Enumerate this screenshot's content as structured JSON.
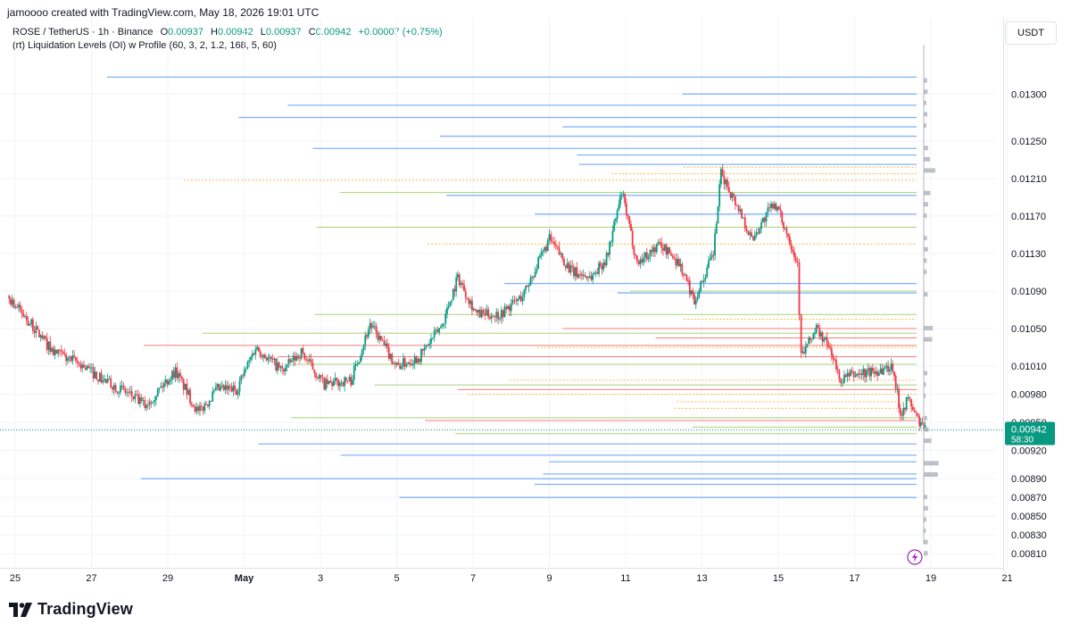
{
  "header": {
    "created_by": "jamoooo created with TradingView.com, May 18, 2026 19:01 UTC"
  },
  "symbol_bar": {
    "symbol": "ROSE / TetherUS · 1h · Binance",
    "open_label": "O",
    "open": "0.00937",
    "high_label": "H",
    "high": "0.00942",
    "low_label": "L",
    "low": "0.00937",
    "close_label": "C",
    "close": "0.00942",
    "change": "+0.00007 (+0.75%)"
  },
  "indicator": {
    "label": "(rt) Liquidation Levels (OI) w Profile (60, 3, 2, 1.2, 168, 5, 60)"
  },
  "currency": "USDT",
  "price_badge": {
    "price": "0.00942",
    "countdown": "58:30"
  },
  "brand": {
    "name": "TradingView"
  },
  "colors": {
    "up": "#089981",
    "down": "#f23645",
    "long_liq": "#5b9cf6",
    "short_liq": "#f7a600",
    "mid_liq": "#8bc34a",
    "liq_red": "#ef5350",
    "profile": "#b2b5be",
    "grid": "#f0f3fa",
    "accent": "#9c27b0"
  },
  "icons": {
    "alert": "lightning-icon",
    "logo": "tradingview-logo-icon"
  },
  "chart_data": {
    "type": "candlestick",
    "title": "ROSE / TetherUS · 1h · Binance",
    "ylim": [
      0.00795,
      0.01345
    ],
    "y_ticks": [
      "0.01300",
      "0.01250",
      "0.01210",
      "0.01170",
      "0.01130",
      "0.01090",
      "0.01050",
      "0.01010",
      "0.00980",
      "0.00950",
      "0.00920",
      "0.00890",
      "0.00870",
      "0.00850",
      "0.00830",
      "0.00810"
    ],
    "x_ticks": [
      "25",
      "27",
      "29",
      "May",
      "3",
      "5",
      "7",
      "9",
      "11",
      "13",
      "15",
      "17",
      "19",
      "21"
    ],
    "x_tick_days": [
      25,
      27,
      29,
      31,
      33,
      35,
      37,
      39,
      41,
      43,
      45,
      47,
      49,
      51
    ],
    "price_path": [
      [
        24.8,
        0.01085
      ],
      [
        25.3,
        0.0106
      ],
      [
        26.0,
        0.01025
      ],
      [
        26.8,
        0.0101
      ],
      [
        27.3,
        0.00995
      ],
      [
        27.8,
        0.00985
      ],
      [
        28.4,
        0.00968
      ],
      [
        29.2,
        0.01005
      ],
      [
        29.8,
        0.0096
      ],
      [
        30.3,
        0.00985
      ],
      [
        30.8,
        0.00985
      ],
      [
        31.3,
        0.0103
      ],
      [
        32.0,
        0.01005
      ],
      [
        32.5,
        0.01025
      ],
      [
        33.1,
        0.0099
      ],
      [
        33.8,
        0.00995
      ],
      [
        34.3,
        0.01055
      ],
      [
        35.0,
        0.0101
      ],
      [
        35.6,
        0.0102
      ],
      [
        36.2,
        0.01055
      ],
      [
        36.6,
        0.01105
      ],
      [
        37.1,
        0.01065
      ],
      [
        37.7,
        0.01065
      ],
      [
        38.3,
        0.01085
      ],
      [
        39.0,
        0.01145
      ],
      [
        39.6,
        0.0111
      ],
      [
        40.1,
        0.01105
      ],
      [
        40.5,
        0.01125
      ],
      [
        40.9,
        0.01195
      ],
      [
        41.3,
        0.0112
      ],
      [
        41.9,
        0.0114
      ],
      [
        42.4,
        0.0112
      ],
      [
        42.8,
        0.0108
      ],
      [
        43.3,
        0.0113
      ],
      [
        43.5,
        0.01215
      ],
      [
        44.0,
        0.01175
      ],
      [
        44.3,
        0.01145
      ],
      [
        44.9,
        0.01185
      ],
      [
        45.3,
        0.01145
      ],
      [
        45.5,
        0.0112
      ],
      [
        45.6,
        0.0102
      ],
      [
        46.0,
        0.0105
      ],
      [
        46.4,
        0.01025
      ],
      [
        46.6,
        0.00995
      ],
      [
        46.9,
        0.01
      ],
      [
        47.6,
        0.01005
      ],
      [
        48.0,
        0.0101
      ],
      [
        48.2,
        0.0096
      ],
      [
        48.4,
        0.00975
      ],
      [
        48.7,
        0.0095
      ],
      [
        48.85,
        0.00942
      ]
    ],
    "last_price": 0.00942,
    "change": 7e-05,
    "change_pct": 0.75,
    "liquidation_levels": {
      "long_levels": [
        0.01318,
        0.013,
        0.01288,
        0.01275,
        0.01265,
        0.01255,
        0.01242,
        0.01235,
        0.01225,
        0.01192,
        0.01172,
        0.01098,
        0.01088,
        0.00927,
        0.00915,
        0.00908,
        0.00895,
        0.0089,
        0.00884,
        0.0087
      ],
      "short_levels": [
        0.01222,
        0.01215,
        0.01208,
        0.0114,
        0.0106,
        0.0103,
        0.00995,
        0.0098,
        0.00972,
        0.00965
      ],
      "mid_levels": [
        0.01195,
        0.01158,
        0.0109,
        0.01065,
        0.01045,
        0.01012,
        0.0099,
        0.00955,
        0.00945,
        0.00938
      ],
      "red_levels": [
        0.0105,
        0.0104,
        0.01032,
        0.0102,
        0.00985,
        0.00952
      ]
    }
  }
}
